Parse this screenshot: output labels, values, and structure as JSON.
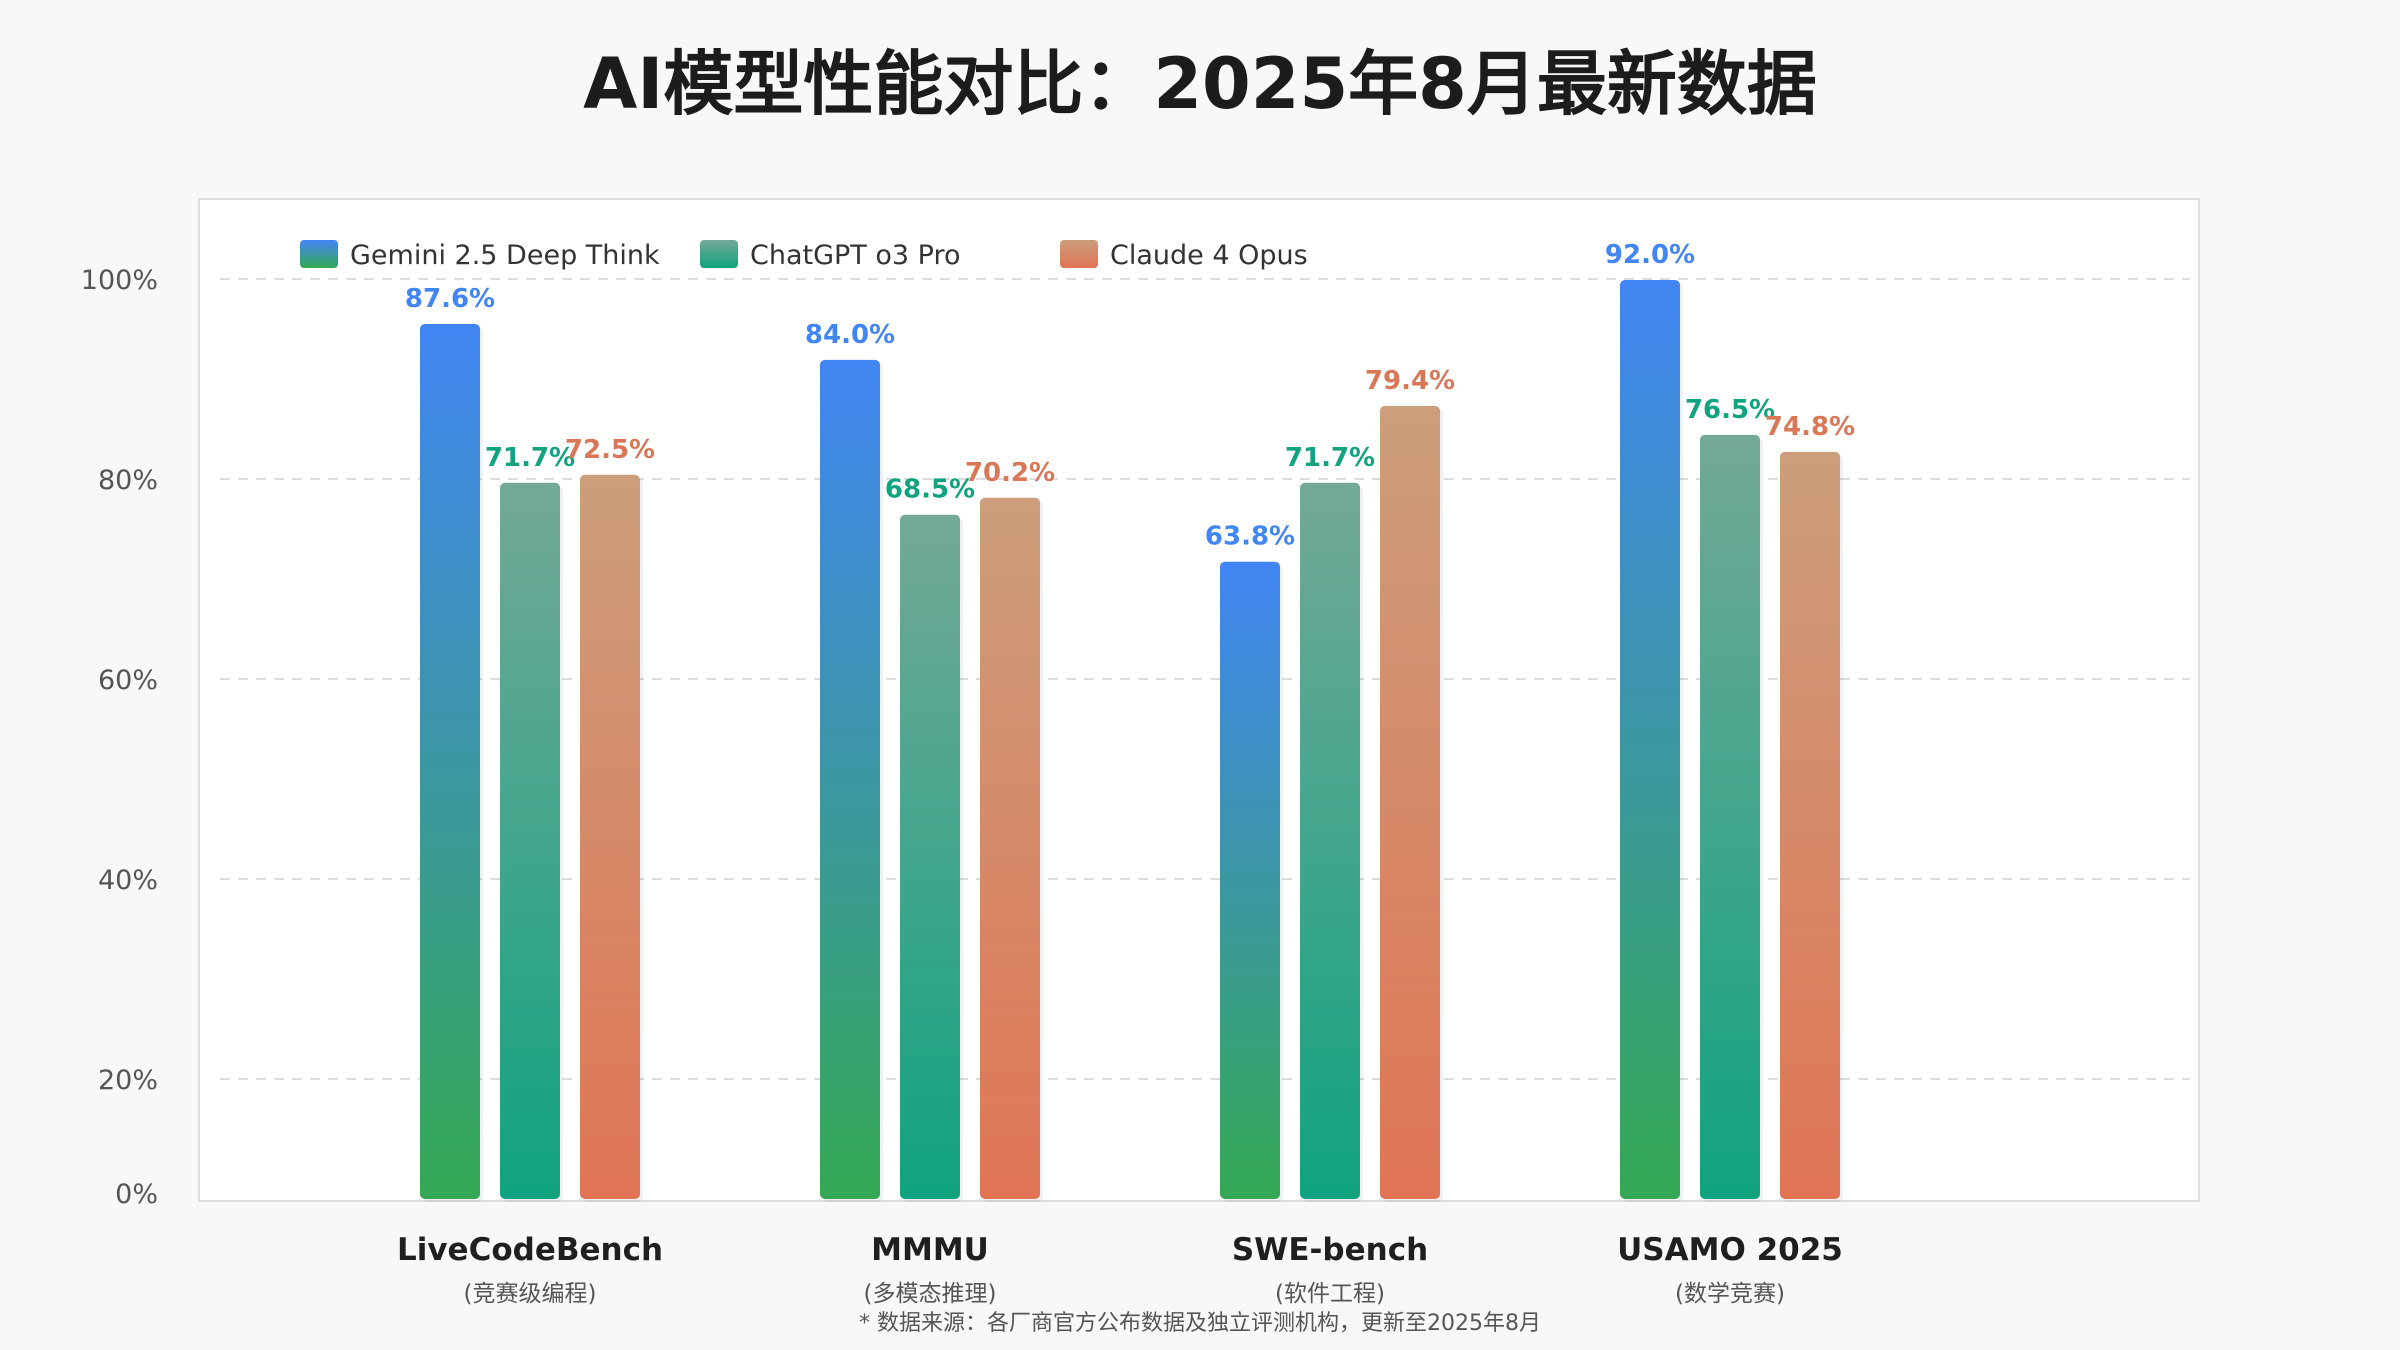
{
  "chart_data": {
    "type": "bar",
    "title": "AI模型性能对比：2025年8月最新数据",
    "categories": [
      "LiveCodeBench",
      "MMMU",
      "SWE-bench",
      "USAMO 2025"
    ],
    "category_subtitles": [
      "(竞赛级编程)",
      "(多模态推理)",
      "(软件工程)",
      "(数学竞赛)"
    ],
    "series": [
      {
        "name": "Gemini 2.5 Deep Think",
        "values": [
          87.6,
          84.0,
          63.8,
          92.0
        ],
        "color_top": "#4285f4",
        "color_bottom": "#34a853",
        "label_color": "#4285f4"
      },
      {
        "name": "ChatGPT o3 Pro",
        "values": [
          71.7,
          68.5,
          71.7,
          76.5
        ],
        "color_top": "#74a898",
        "color_bottom": "#10a37f",
        "label_color": "#10a37f"
      },
      {
        "name": "Claude 4 Opus",
        "values": [
          72.5,
          70.2,
          79.4,
          74.8
        ],
        "color_top": "#cc9e7c",
        "color_bottom": "#e07555",
        "label_color": "#d97757"
      }
    ],
    "value_suffix": "%",
    "ylim": [
      0,
      92
    ],
    "yticks": [
      0,
      20,
      40,
      60,
      80,
      100
    ],
    "ytick_labels": [
      "0%",
      "20%",
      "40%",
      "60%",
      "80%",
      "100%"
    ],
    "grid": true,
    "legend_position": "top-left",
    "footnote": "* 数据来源：各厂商官方公布数据及独立评测机构，更新至2025年8月"
  }
}
